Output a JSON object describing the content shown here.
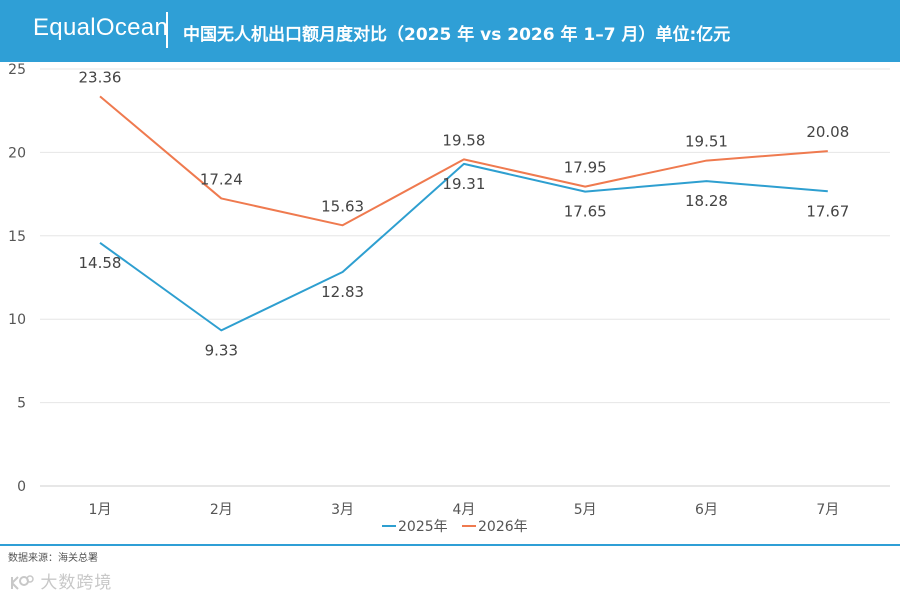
{
  "header": {
    "logo": "EqualOcean",
    "title": "中国无人机出口额月度对比（2025 年 vs 2026 年 1–7 月）单位:亿元"
  },
  "chart_data": {
    "type": "line",
    "categories": [
      "1月",
      "2月",
      "3月",
      "4月",
      "5月",
      "6月",
      "7月"
    ],
    "series": [
      {
        "name": "2025年",
        "values": [
          14.58,
          9.33,
          12.83,
          19.31,
          17.65,
          18.28,
          17.67
        ],
        "color": "#2e9fd0",
        "labels": [
          "14.58",
          "9.33",
          "12.83",
          "19.31",
          "17.65",
          "18.28",
          "17.67"
        ]
      },
      {
        "name": "2026年",
        "values": [
          23.36,
          17.24,
          15.63,
          19.58,
          17.95,
          19.51,
          20.08
        ],
        "color": "#ef7a4f",
        "labels": [
          "23.36",
          "17.24",
          "15.63",
          "19.58",
          "17.95",
          "19.51",
          "20.08"
        ]
      }
    ],
    "y_ticks": [
      "0",
      "5",
      "10",
      "15",
      "20",
      "25"
    ],
    "ylim": [
      0,
      25
    ],
    "grid": true,
    "legend": "bottom-center"
  },
  "footer": {
    "source": "数据来源：海关总署",
    "watermark": "大数跨境"
  }
}
